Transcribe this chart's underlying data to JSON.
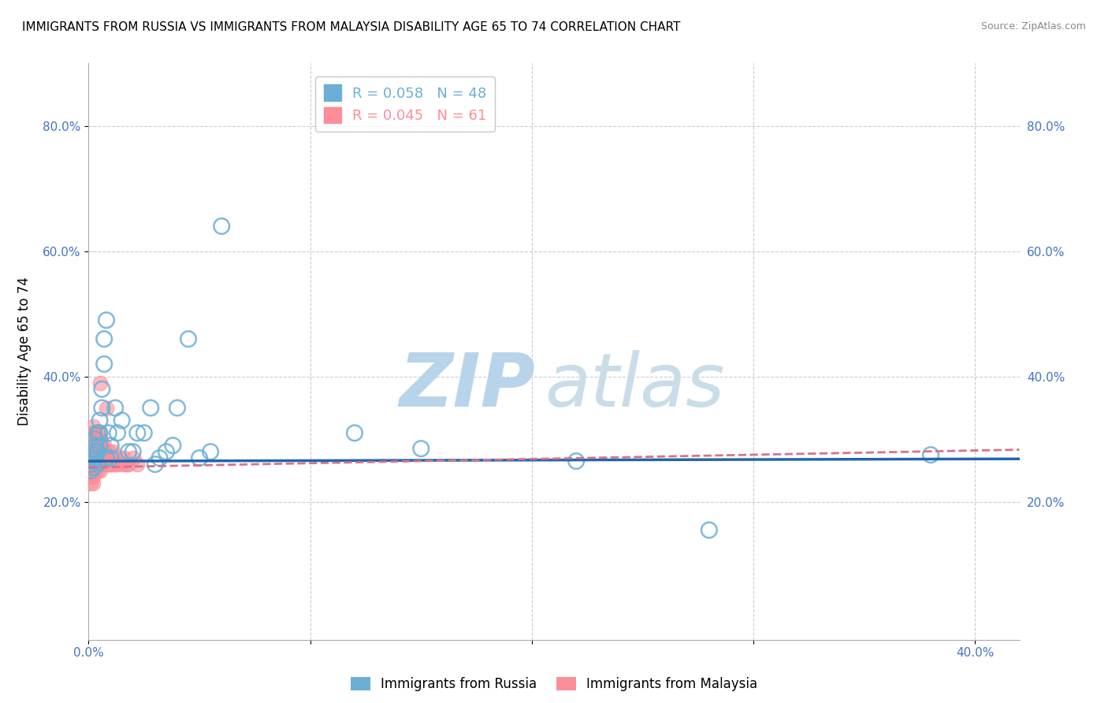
{
  "title": "IMMIGRANTS FROM RUSSIA VS IMMIGRANTS FROM MALAYSIA DISABILITY AGE 65 TO 74 CORRELATION CHART",
  "source": "Source: ZipAtlas.com",
  "xlabel": "",
  "ylabel": "Disability Age 65 to 74",
  "xlim": [
    0.0,
    0.42
  ],
  "ylim": [
    -0.02,
    0.9
  ],
  "russia_color": "#6baed6",
  "malaysia_color": "#fc8d99",
  "russia_line_color": "#2166ac",
  "malaysia_line_color": "#d4748a",
  "russia_R": 0.058,
  "russia_N": 48,
  "malaysia_R": 0.045,
  "malaysia_N": 61,
  "russia_scatter_x": [
    0.001,
    0.001,
    0.001,
    0.002,
    0.002,
    0.002,
    0.002,
    0.003,
    0.003,
    0.003,
    0.003,
    0.004,
    0.004,
    0.004,
    0.005,
    0.005,
    0.005,
    0.006,
    0.006,
    0.007,
    0.007,
    0.008,
    0.008,
    0.009,
    0.01,
    0.01,
    0.012,
    0.013,
    0.015,
    0.018,
    0.02,
    0.022,
    0.025,
    0.028,
    0.03,
    0.032,
    0.035,
    0.038,
    0.04,
    0.045,
    0.05,
    0.055,
    0.06,
    0.12,
    0.15,
    0.22,
    0.28,
    0.38
  ],
  "russia_scatter_y": [
    0.27,
    0.26,
    0.25,
    0.285,
    0.275,
    0.265,
    0.255,
    0.28,
    0.27,
    0.29,
    0.3,
    0.31,
    0.28,
    0.26,
    0.33,
    0.31,
    0.29,
    0.35,
    0.38,
    0.42,
    0.46,
    0.49,
    0.27,
    0.31,
    0.29,
    0.27,
    0.35,
    0.31,
    0.33,
    0.28,
    0.28,
    0.31,
    0.31,
    0.35,
    0.26,
    0.27,
    0.28,
    0.29,
    0.35,
    0.46,
    0.27,
    0.28,
    0.64,
    0.31,
    0.285,
    0.265,
    0.155,
    0.275
  ],
  "malaysia_scatter_x": [
    0.001,
    0.001,
    0.001,
    0.001,
    0.001,
    0.001,
    0.001,
    0.001,
    0.002,
    0.002,
    0.002,
    0.002,
    0.002,
    0.002,
    0.002,
    0.002,
    0.002,
    0.002,
    0.003,
    0.003,
    0.003,
    0.003,
    0.003,
    0.003,
    0.003,
    0.004,
    0.004,
    0.004,
    0.004,
    0.004,
    0.005,
    0.005,
    0.005,
    0.005,
    0.005,
    0.005,
    0.005,
    0.006,
    0.006,
    0.006,
    0.006,
    0.007,
    0.007,
    0.007,
    0.008,
    0.008,
    0.008,
    0.009,
    0.009,
    0.01,
    0.011,
    0.012,
    0.013,
    0.014,
    0.015,
    0.016,
    0.017,
    0.018,
    0.02,
    0.022,
    0.005
  ],
  "malaysia_scatter_y": [
    0.27,
    0.26,
    0.25,
    0.24,
    0.23,
    0.27,
    0.28,
    0.29,
    0.27,
    0.26,
    0.25,
    0.24,
    0.23,
    0.28,
    0.29,
    0.3,
    0.31,
    0.32,
    0.26,
    0.27,
    0.28,
    0.29,
    0.3,
    0.31,
    0.25,
    0.25,
    0.26,
    0.27,
    0.28,
    0.29,
    0.25,
    0.26,
    0.27,
    0.28,
    0.29,
    0.3,
    0.31,
    0.26,
    0.27,
    0.28,
    0.29,
    0.27,
    0.28,
    0.29,
    0.26,
    0.27,
    0.35,
    0.26,
    0.28,
    0.26,
    0.28,
    0.26,
    0.26,
    0.27,
    0.26,
    0.27,
    0.26,
    0.26,
    0.27,
    0.26,
    0.39
  ],
  "grid_color": "#cccccc",
  "background_color": "#ffffff",
  "watermark_zip": "ZIP",
  "watermark_atlas": "atlas",
  "watermark_color": "#dce9f5"
}
